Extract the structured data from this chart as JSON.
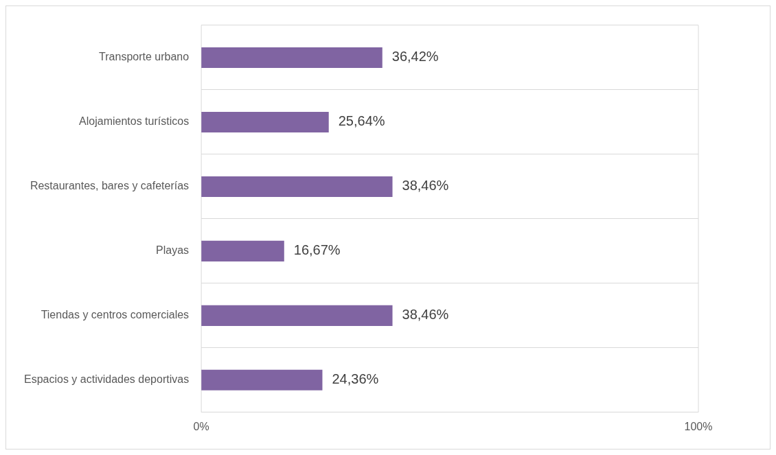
{
  "chart_data": {
    "type": "bar",
    "orientation": "horizontal",
    "categories": [
      "Transporte urbano",
      "Alojamientos turísticos",
      "Restaurantes, bares y cafeterías",
      "Playas",
      "Tiendas y centros comerciales",
      "Espacios y actividades deportivas"
    ],
    "values": [
      36.42,
      25.64,
      38.46,
      16.67,
      38.46,
      24.36
    ],
    "value_labels": [
      "36,42%",
      "25,64%",
      "38,46%",
      "16,67%",
      "38,46%",
      "24,36%"
    ],
    "color": "#8064a2",
    "xlim": [
      0,
      100
    ],
    "xticks": [
      {
        "value": 0,
        "label": "0%"
      },
      {
        "value": 100,
        "label": "100%"
      }
    ],
    "grid": "y",
    "legend": false
  }
}
